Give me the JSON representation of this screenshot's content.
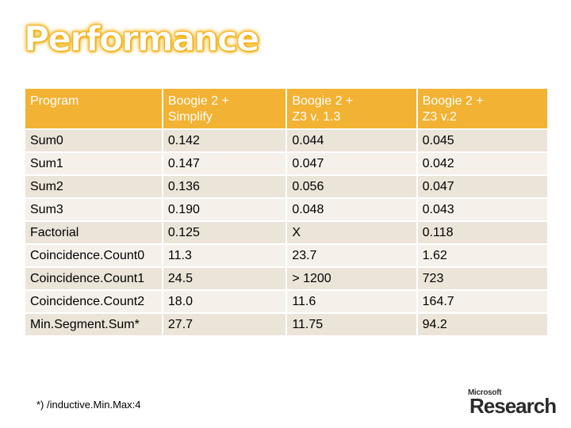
{
  "title": "Performance",
  "table": {
    "headers": [
      [
        "Program"
      ],
      [
        "Boogie 2 +",
        "Simplify"
      ],
      [
        "Boogie 2 +",
        "Z3 v. 1.3"
      ],
      [
        "Boogie 2 +",
        "Z3 v.2"
      ]
    ],
    "rows": [
      [
        "Sum0",
        "0.142",
        "0.044",
        "0.045"
      ],
      [
        "Sum1",
        "0.147",
        "0.047",
        "0.042"
      ],
      [
        "Sum2",
        "0.136",
        "0.056",
        "0.047"
      ],
      [
        "Sum3",
        "0.190",
        "0.048",
        "0.043"
      ],
      [
        "Factorial",
        "0.125",
        "X",
        "0.118"
      ],
      [
        "Coincidence.Count0",
        "11.3",
        "23.7",
        "1.62"
      ],
      [
        "Coincidence.Count1",
        "24.5",
        "> 1200",
        "723"
      ],
      [
        "Coincidence.Count2",
        "18.0",
        "11.6",
        "164.7"
      ],
      [
        "Min.Segment.Sum*",
        "27.7",
        "11.75",
        "94.2"
      ]
    ]
  },
  "footnote": "*) /inductive.Min.Max:4",
  "logo": {
    "company": "Microsoft",
    "name": "Research"
  },
  "colors": {
    "header_bg": "#f2b233",
    "row_odd": "#ebe4d8",
    "row_even": "#f5f1ea",
    "title_glow": "#f5b800"
  }
}
